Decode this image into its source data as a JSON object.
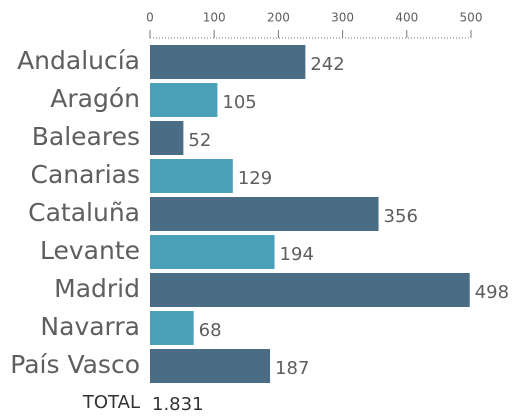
{
  "chart_data": {
    "type": "bar",
    "orientation": "horizontal",
    "categories": [
      "Andalucía",
      "Aragón",
      "Baleares",
      "Canarias",
      "Cataluña",
      "Levante",
      "Madrid",
      "Navarra",
      "País Vasco"
    ],
    "values": [
      242,
      105,
      52,
      129,
      356,
      194,
      498,
      68,
      187
    ],
    "colors": [
      "#4a6c84",
      "#4aa0b9",
      "#4a6c84",
      "#4aa0b9",
      "#4a6c84",
      "#4aa0b9",
      "#4a6c84",
      "#4aa0b9",
      "#4a6c84"
    ],
    "xlim": [
      0,
      500
    ],
    "xticks": [
      0,
      100,
      200,
      300,
      400,
      500
    ],
    "total": {
      "label": "TOTAL",
      "value": "1.831"
    }
  }
}
